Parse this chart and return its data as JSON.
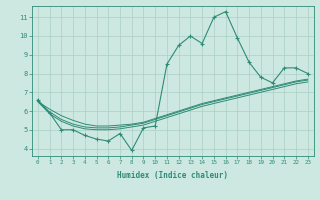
{
  "xlabel": "Humidex (Indice chaleur)",
  "x": [
    0,
    1,
    2,
    3,
    4,
    5,
    6,
    7,
    8,
    9,
    10,
    11,
    12,
    13,
    14,
    15,
    16,
    17,
    18,
    19,
    20,
    21,
    22,
    23
  ],
  "y_main": [
    6.6,
    5.9,
    5.0,
    5.0,
    4.7,
    4.5,
    4.4,
    4.8,
    3.9,
    5.1,
    5.2,
    8.5,
    9.5,
    10.0,
    9.6,
    11.0,
    11.3,
    9.9,
    8.6,
    7.8,
    7.5,
    8.3,
    8.3,
    8.0
  ],
  "y_line1": [
    6.5,
    6.1,
    5.75,
    5.5,
    5.3,
    5.2,
    5.2,
    5.25,
    5.3,
    5.4,
    5.6,
    5.8,
    6.0,
    6.2,
    6.4,
    6.55,
    6.7,
    6.85,
    7.0,
    7.15,
    7.3,
    7.45,
    7.6,
    7.7
  ],
  "y_line2": [
    6.5,
    5.95,
    5.55,
    5.3,
    5.15,
    5.1,
    5.1,
    5.15,
    5.25,
    5.35,
    5.55,
    5.75,
    5.95,
    6.15,
    6.35,
    6.5,
    6.65,
    6.8,
    6.95,
    7.1,
    7.25,
    7.4,
    7.55,
    7.65
  ],
  "y_line3": [
    6.5,
    5.85,
    5.45,
    5.2,
    5.05,
    5.0,
    5.0,
    5.05,
    5.15,
    5.25,
    5.45,
    5.65,
    5.85,
    6.05,
    6.25,
    6.4,
    6.55,
    6.7,
    6.85,
    7.0,
    7.15,
    7.3,
    7.45,
    7.55
  ],
  "line_color": "#2e8b77",
  "bg_color": "#cde8e0",
  "grid_color": "#aacfc5",
  "ylim": [
    3.6,
    11.6
  ],
  "xlim": [
    -0.5,
    23.5
  ],
  "yticks": [
    4,
    5,
    6,
    7,
    8,
    9,
    10,
    11
  ]
}
